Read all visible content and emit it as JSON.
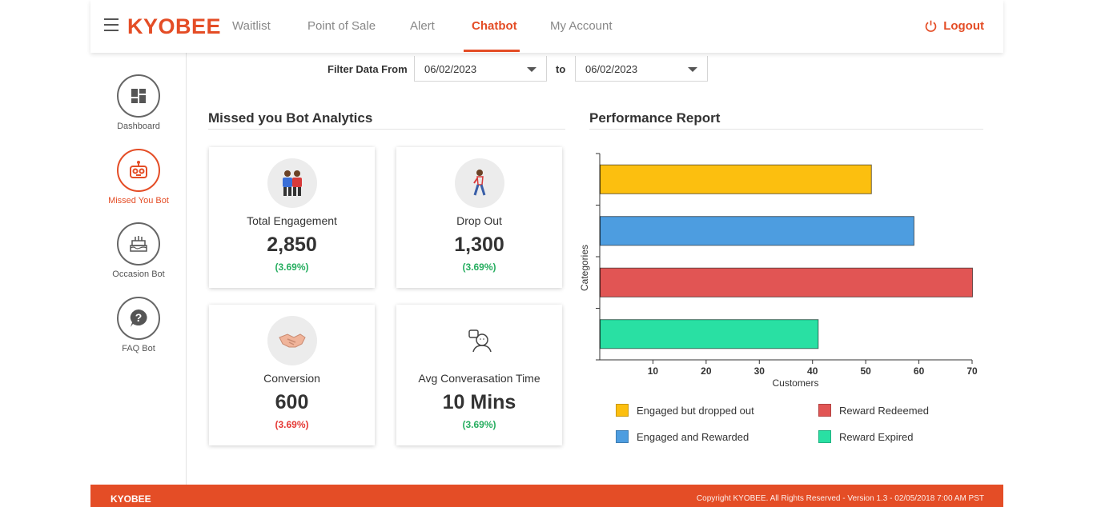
{
  "brand": "KYOBEE",
  "nav": {
    "items": [
      "Waitlist",
      "Point of Sale",
      "Alert",
      "Chatbot",
      "My Account"
    ],
    "active": "Chatbot",
    "logout": "Logout"
  },
  "sidebar": {
    "items": [
      {
        "label": "Dashboard",
        "icon": "dashboard-icon"
      },
      {
        "label": "Missed You Bot",
        "icon": "robot-icon"
      },
      {
        "label": "Occasion Bot",
        "icon": "cake-icon"
      },
      {
        "label": "FAQ Bot",
        "icon": "question-icon"
      }
    ],
    "active": "Missed You Bot"
  },
  "filter": {
    "label": "Filter Data From",
    "from": "06/02/2023",
    "to_label": "to",
    "to": "06/02/2023"
  },
  "analytics": {
    "title": "Missed you Bot Analytics",
    "cards": [
      {
        "title": "Total Engagement",
        "value": "2,850",
        "pct": "(3.69%)",
        "trend": "up",
        "icon": "people-icon"
      },
      {
        "title": "Drop Out",
        "value": "1,300",
        "pct": "(3.69%)",
        "trend": "up",
        "icon": "walking-person-icon"
      },
      {
        "title": "Conversion",
        "value": "600",
        "pct": "(3.69%)",
        "trend": "down",
        "icon": "handshake-icon"
      },
      {
        "title": "Avg Converasation Time",
        "value": "10 Mins",
        "pct": "(3.69%)",
        "trend": "up",
        "icon": "chat-person-icon"
      }
    ]
  },
  "performance": {
    "title": "Performance Report"
  },
  "chart_data": {
    "type": "bar",
    "orientation": "horizontal",
    "categories": [
      "Engaged but dropped out",
      "Engaged and Rewarded",
      "Reward Redeemed",
      "Reward Expired"
    ],
    "values": [
      51,
      59,
      70,
      41
    ],
    "colors": [
      "#fcbf0f",
      "#4d9de0",
      "#e15554",
      "#29e0a3"
    ],
    "xlabel": "Customers",
    "ylabel": "Categories",
    "xlim": [
      0,
      70
    ],
    "xticks": [
      10,
      20,
      30,
      40,
      50,
      60,
      70
    ],
    "legend_position": "bottom"
  },
  "footer": {
    "left": "KYOBEE",
    "right": "Copyright KYOBEE. All Rights Reserved - Version 1.3 - 02/05/2018 7:00 AM PST"
  },
  "colors": {
    "accent": "#e44d26",
    "green": "#27ae60",
    "red": "#e53935"
  }
}
